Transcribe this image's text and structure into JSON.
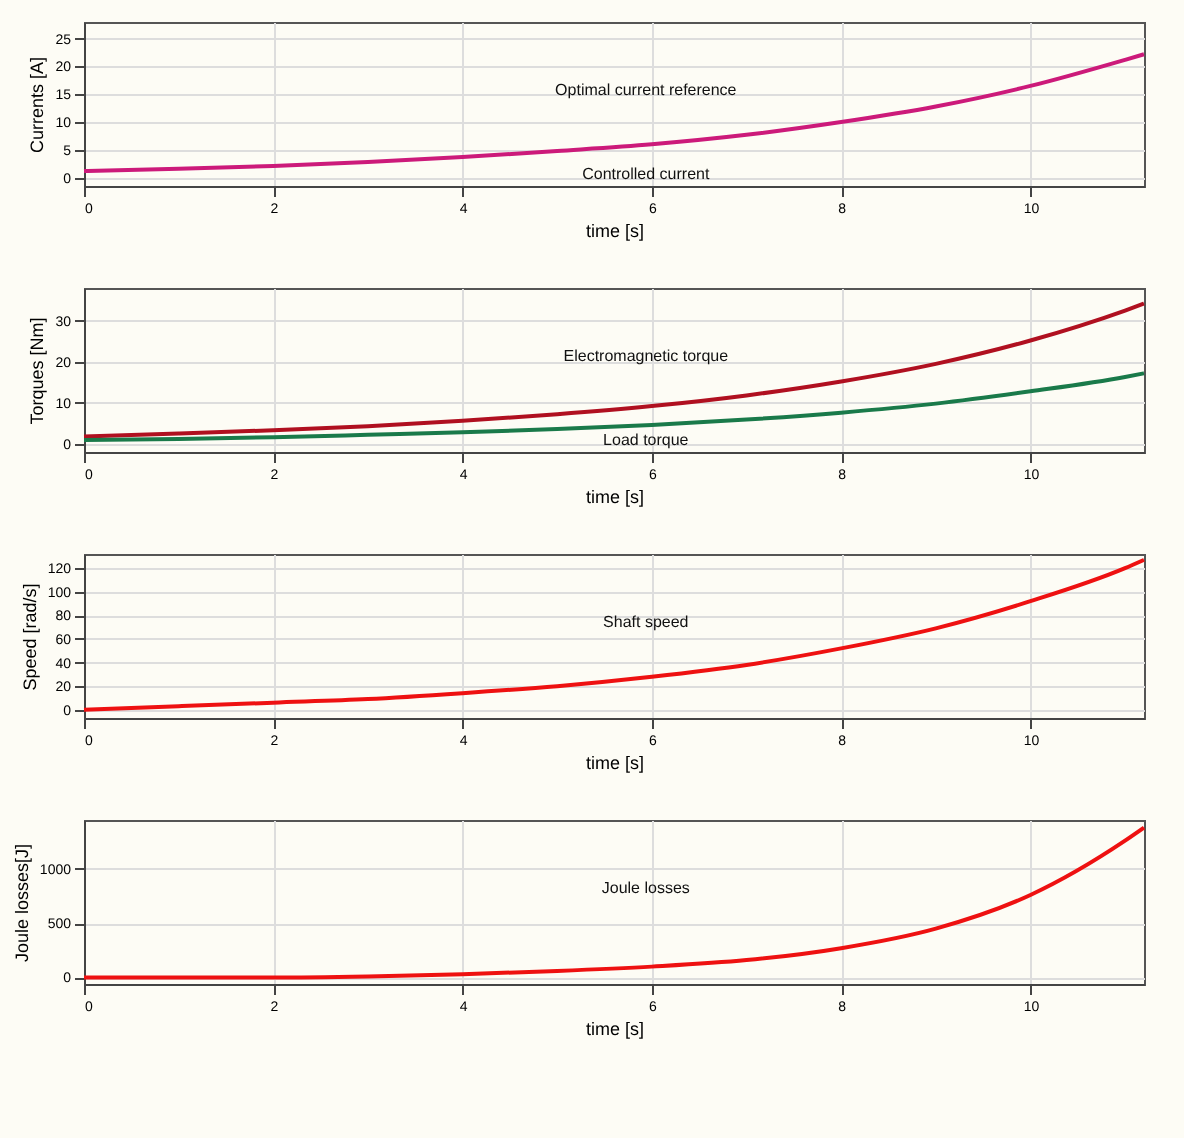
{
  "chart_data": [
    {
      "type": "line",
      "ylabel": "Currents [A]",
      "xlabel": "time [s]",
      "x": [
        0,
        1,
        2,
        3,
        4,
        5,
        6,
        7,
        8,
        9,
        10,
        11,
        11.2
      ],
      "xlim": [
        0,
        11.2
      ],
      "xticks": [
        0,
        2,
        4,
        6,
        8,
        10
      ],
      "ylim": [
        -1.5,
        28
      ],
      "yticks": [
        0,
        5,
        10,
        15,
        20,
        25
      ],
      "grid": true,
      "series": [
        {
          "color": "#cc1a7a",
          "values": [
            1.2,
            1.6,
            2.1,
            2.8,
            3.7,
            4.8,
            6.0,
            7.7,
            10,
            12.8,
            16.5,
            21.2,
            22.2
          ]
        }
      ],
      "annotations": [
        "Optimal current reference",
        "Controlled current"
      ]
    },
    {
      "type": "line",
      "ylabel": "Torques [Nm]",
      "xlabel": "time [s]",
      "x": [
        0,
        1,
        2,
        3,
        4,
        5,
        6,
        7,
        8,
        9,
        10,
        11,
        11.2
      ],
      "xlim": [
        0,
        11.2
      ],
      "xticks": [
        0,
        2,
        4,
        6,
        8,
        10
      ],
      "ylim": [
        -2,
        38
      ],
      "yticks": [
        0,
        10,
        20,
        30
      ],
      "grid": true,
      "series": [
        {
          "color": "#b01020",
          "values": [
            1.8,
            2.5,
            3.3,
            4.3,
            5.6,
            7.2,
            9.2,
            11.8,
            15.2,
            19.5,
            25.2,
            32.5,
            34.2
          ]
        },
        {
          "color": "#1a7a4a",
          "values": [
            0.9,
            1.2,
            1.6,
            2.2,
            2.8,
            3.6,
            4.6,
            5.9,
            7.6,
            9.8,
            12.8,
            16.3,
            17.2
          ]
        }
      ],
      "annotations": [
        "Electromagnetic torque",
        "Load torque"
      ]
    },
    {
      "type": "line",
      "ylabel": "Speed [rad/s]",
      "xlabel": "time [s]",
      "x": [
        0,
        1,
        2,
        3,
        4,
        5,
        6,
        7,
        8,
        9,
        10,
        11,
        11.2
      ],
      "xlim": [
        0,
        11.2
      ],
      "xticks": [
        0,
        2,
        4,
        6,
        8,
        10
      ],
      "ylim": [
        -7,
        132
      ],
      "yticks": [
        0,
        20,
        40,
        60,
        80,
        100,
        120
      ],
      "grid": true,
      "series": [
        {
          "color": "#ee1111",
          "values": [
            0,
            3,
            6,
            9,
            14,
            20,
            28,
            38,
            52,
            69,
            92,
            120,
            127
          ]
        }
      ],
      "annotations": [
        "Shaft speed"
      ]
    },
    {
      "type": "line",
      "ylabel": "Joule losses[J]",
      "xlabel": "time [s]",
      "x": [
        0,
        1,
        2,
        3,
        4,
        5,
        6,
        7,
        8,
        9,
        10,
        11,
        11.2
      ],
      "xlim": [
        0,
        11.2
      ],
      "xticks": [
        0,
        2,
        4,
        6,
        8,
        10
      ],
      "ylim": [
        -60,
        1450
      ],
      "yticks": [
        0,
        500,
        1000
      ],
      "grid": true,
      "series": [
        {
          "color": "#ee1111",
          "values": [
            0,
            0,
            0,
            10,
            30,
            60,
            100,
            160,
            270,
            450,
            760,
            1260,
            1380
          ]
        }
      ],
      "annotations": [
        "Joule losses"
      ]
    }
  ]
}
